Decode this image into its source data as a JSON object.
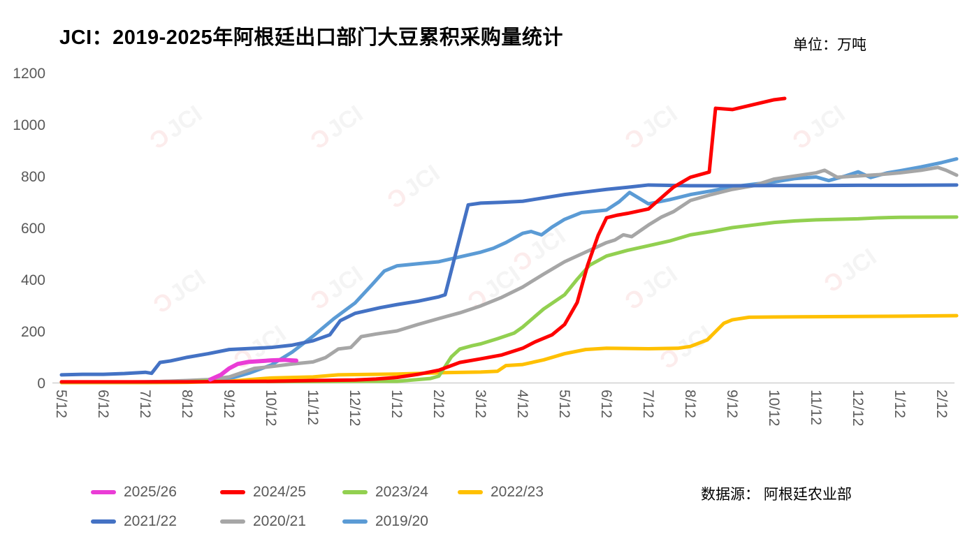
{
  "header": {
    "title": "JCI：2019-2025年阿根廷出口部门大豆累积采购量统计",
    "unit_label": "单位：万吨"
  },
  "source_label": "数据源： 阿根廷农业部",
  "watermark": {
    "glyph": "Ɔ",
    "text": "JCI",
    "bracket_color": "#f5bcbc",
    "text_color": "#d9d9d9"
  },
  "chart_data": {
    "type": "line",
    "title": "JCI：2019-2025年阿根廷出口部门大豆累积采购量统计",
    "unit": "万吨",
    "xlabel": "",
    "ylabel": "",
    "ylim": [
      0,
      1200
    ],
    "y_ticks": [
      0,
      200,
      400,
      600,
      800,
      1000,
      1200
    ],
    "grid": false,
    "legend_position": "bottom",
    "x_note": "x units = months after first-year May 12 (5/12); one tick per month",
    "x_tick_labels": [
      "5/12",
      "6/12",
      "7/12",
      "8/12",
      "9/12",
      "10/12",
      "11/12",
      "12/12",
      "1/12",
      "2/12",
      "3/12",
      "4/12",
      "5/12",
      "6/12",
      "7/12",
      "8/12",
      "9/12",
      "10/12",
      "11/12",
      "12/12",
      "1/12",
      "2/12"
    ],
    "axis_color": "#595959",
    "series": [
      {
        "name": "2025/26",
        "color": "#EA3CD6",
        "z": 7,
        "width": 6,
        "points": [
          [
            3.55,
            12
          ],
          [
            3.8,
            30
          ],
          [
            4,
            55
          ],
          [
            4.2,
            72
          ],
          [
            4.45,
            80
          ],
          [
            5,
            86
          ],
          [
            5.3,
            88
          ],
          [
            5.6,
            85
          ]
        ]
      },
      {
        "name": "2024/25",
        "color": "#FE0000",
        "z": 6,
        "width": 5,
        "points": [
          [
            0,
            3
          ],
          [
            1,
            3
          ],
          [
            2,
            3
          ],
          [
            3,
            3
          ],
          [
            4,
            4
          ],
          [
            5,
            5
          ],
          [
            6,
            8
          ],
          [
            7,
            10
          ],
          [
            7.5,
            14
          ],
          [
            8,
            20
          ],
          [
            8.5,
            32
          ],
          [
            9,
            48
          ],
          [
            9.5,
            78
          ],
          [
            10,
            92
          ],
          [
            10.5,
            107
          ],
          [
            11,
            133
          ],
          [
            11.3,
            158
          ],
          [
            11.7,
            185
          ],
          [
            12,
            225
          ],
          [
            12.3,
            310
          ],
          [
            12.55,
            455
          ],
          [
            12.8,
            570
          ],
          [
            13,
            638
          ],
          [
            13.25,
            648
          ],
          [
            13.5,
            655
          ],
          [
            14,
            672
          ],
          [
            14.6,
            757
          ],
          [
            15,
            795
          ],
          [
            15.45,
            815
          ],
          [
            15.6,
            1062
          ],
          [
            16,
            1057
          ],
          [
            16.6,
            1080
          ],
          [
            17,
            1095
          ],
          [
            17.25,
            1100
          ]
        ]
      },
      {
        "name": "2023/24",
        "color": "#92D050",
        "z": 5,
        "width": 5,
        "points": [
          [
            0,
            2
          ],
          [
            1,
            2
          ],
          [
            2,
            2
          ],
          [
            3,
            3
          ],
          [
            3.5,
            7
          ],
          [
            3.8,
            4
          ],
          [
            5,
            4
          ],
          [
            6,
            4
          ],
          [
            7,
            5
          ],
          [
            8,
            5
          ],
          [
            8.8,
            16
          ],
          [
            9,
            25
          ],
          [
            9.3,
            100
          ],
          [
            9.5,
            130
          ],
          [
            9.8,
            143
          ],
          [
            10,
            150
          ],
          [
            10.4,
            170
          ],
          [
            10.8,
            192
          ],
          [
            11,
            215
          ],
          [
            11.5,
            285
          ],
          [
            12,
            340
          ],
          [
            12.3,
            400
          ],
          [
            12.6,
            455
          ],
          [
            13,
            490
          ],
          [
            13.5,
            512
          ],
          [
            14,
            530
          ],
          [
            14.5,
            548
          ],
          [
            15,
            572
          ],
          [
            15.5,
            585
          ],
          [
            16,
            600
          ],
          [
            16.5,
            610
          ],
          [
            17,
            620
          ],
          [
            17.5,
            626
          ],
          [
            18,
            630
          ],
          [
            19,
            634
          ],
          [
            19.5,
            638
          ],
          [
            20,
            640
          ],
          [
            21.35,
            641
          ]
        ]
      },
      {
        "name": "2022/23",
        "color": "#FFC000",
        "z": 4,
        "width": 5,
        "points": [
          [
            0,
            0
          ],
          [
            1,
            0
          ],
          [
            2,
            0
          ],
          [
            3,
            1
          ],
          [
            4,
            5
          ],
          [
            4.5,
            12
          ],
          [
            5,
            18
          ],
          [
            6,
            22
          ],
          [
            6.6,
            30
          ],
          [
            7,
            31
          ],
          [
            8,
            33
          ],
          [
            9,
            38
          ],
          [
            10,
            41
          ],
          [
            10.4,
            44
          ],
          [
            10.6,
            66
          ],
          [
            11,
            70
          ],
          [
            11.5,
            88
          ],
          [
            12,
            112
          ],
          [
            12.5,
            128
          ],
          [
            13,
            133
          ],
          [
            14,
            131
          ],
          [
            14.7,
            133
          ],
          [
            15,
            140
          ],
          [
            15.4,
            165
          ],
          [
            15.8,
            230
          ],
          [
            16,
            243
          ],
          [
            16.4,
            253
          ],
          [
            17,
            254
          ],
          [
            18,
            255
          ],
          [
            19,
            256
          ],
          [
            20,
            257
          ],
          [
            21.35,
            259
          ]
        ]
      },
      {
        "name": "2021/22",
        "color": "#4472C4",
        "z": 3,
        "width": 5,
        "points": [
          [
            0,
            30
          ],
          [
            0.5,
            32
          ],
          [
            1,
            32
          ],
          [
            1.5,
            35
          ],
          [
            2,
            40
          ],
          [
            2.15,
            36
          ],
          [
            2.35,
            78
          ],
          [
            2.6,
            84
          ],
          [
            3,
            98
          ],
          [
            3.5,
            112
          ],
          [
            4,
            128
          ],
          [
            4.5,
            132
          ],
          [
            5,
            136
          ],
          [
            5.5,
            145
          ],
          [
            6,
            162
          ],
          [
            6.4,
            185
          ],
          [
            6.65,
            240
          ],
          [
            7,
            268
          ],
          [
            7.6,
            290
          ],
          [
            8,
            302
          ],
          [
            8.5,
            315
          ],
          [
            9,
            332
          ],
          [
            9.15,
            340
          ],
          [
            9.7,
            688
          ],
          [
            10,
            695
          ],
          [
            10.5,
            698
          ],
          [
            11,
            702
          ],
          [
            11.5,
            715
          ],
          [
            12,
            728
          ],
          [
            12.5,
            738
          ],
          [
            13,
            748
          ],
          [
            13.5,
            756
          ],
          [
            14,
            765
          ],
          [
            15,
            762
          ],
          [
            16,
            762
          ],
          [
            17,
            763
          ],
          [
            18,
            763
          ],
          [
            19,
            764
          ],
          [
            20,
            764
          ],
          [
            21.35,
            765
          ]
        ]
      },
      {
        "name": "2020/21",
        "color": "#A6A6A6",
        "z": 2,
        "width": 5,
        "points": [
          [
            0,
            0
          ],
          [
            1,
            1
          ],
          [
            2,
            2
          ],
          [
            3,
            8
          ],
          [
            3.5,
            12
          ],
          [
            4,
            22
          ],
          [
            4.6,
            55
          ],
          [
            5,
            62
          ],
          [
            5.5,
            72
          ],
          [
            6,
            80
          ],
          [
            6.3,
            97
          ],
          [
            6.6,
            130
          ],
          [
            6.9,
            136
          ],
          [
            7.15,
            178
          ],
          [
            7.5,
            188
          ],
          [
            8,
            200
          ],
          [
            8.5,
            225
          ],
          [
            9,
            248
          ],
          [
            9.5,
            270
          ],
          [
            10,
            297
          ],
          [
            10.5,
            330
          ],
          [
            11,
            370
          ],
          [
            11.5,
            420
          ],
          [
            12,
            468
          ],
          [
            12.5,
            505
          ],
          [
            13,
            542
          ],
          [
            13.2,
            552
          ],
          [
            13.4,
            572
          ],
          [
            13.6,
            565
          ],
          [
            14,
            610
          ],
          [
            14.3,
            640
          ],
          [
            14.6,
            662
          ],
          [
            15,
            705
          ],
          [
            15.5,
            728
          ],
          [
            16,
            748
          ],
          [
            16.5,
            762
          ],
          [
            17,
            788
          ],
          [
            17.5,
            800
          ],
          [
            18,
            812
          ],
          [
            18.2,
            822
          ],
          [
            18.5,
            795
          ],
          [
            19,
            800
          ],
          [
            19.5,
            805
          ],
          [
            20,
            812
          ],
          [
            20.5,
            822
          ],
          [
            20.9,
            833
          ],
          [
            21.1,
            822
          ],
          [
            21.35,
            803
          ]
        ]
      },
      {
        "name": "2019/20",
        "color": "#5B9BD5",
        "z": 1,
        "width": 5,
        "points": [
          [
            0,
            2
          ],
          [
            1,
            2
          ],
          [
            2,
            3
          ],
          [
            3,
            6
          ],
          [
            4,
            15
          ],
          [
            4.5,
            38
          ],
          [
            5,
            68
          ],
          [
            5.5,
            118
          ],
          [
            6,
            180
          ],
          [
            6.5,
            248
          ],
          [
            7,
            308
          ],
          [
            7.4,
            378
          ],
          [
            7.7,
            432
          ],
          [
            8,
            452
          ],
          [
            8.5,
            460
          ],
          [
            9,
            468
          ],
          [
            9.4,
            483
          ],
          [
            10,
            505
          ],
          [
            10.3,
            520
          ],
          [
            10.6,
            542
          ],
          [
            11,
            578
          ],
          [
            11.2,
            585
          ],
          [
            11.45,
            572
          ],
          [
            11.7,
            602
          ],
          [
            12,
            632
          ],
          [
            12.4,
            658
          ],
          [
            13,
            668
          ],
          [
            13.3,
            700
          ],
          [
            13.55,
            736
          ],
          [
            14,
            692
          ],
          [
            14.5,
            708
          ],
          [
            15,
            728
          ],
          [
            15.5,
            742
          ],
          [
            16,
            758
          ],
          [
            16.5,
            768
          ],
          [
            17,
            777
          ],
          [
            17.5,
            790
          ],
          [
            18,
            796
          ],
          [
            18.3,
            782
          ],
          [
            18.7,
            800
          ],
          [
            19,
            816
          ],
          [
            19.3,
            794
          ],
          [
            19.7,
            812
          ],
          [
            20,
            820
          ],
          [
            20.5,
            835
          ],
          [
            21,
            852
          ],
          [
            21.35,
            866
          ]
        ]
      }
    ]
  },
  "legend": {
    "row1_series_indexes": [
      0,
      1,
      2,
      3
    ],
    "row2_series_indexes": [
      4,
      5,
      6
    ]
  }
}
